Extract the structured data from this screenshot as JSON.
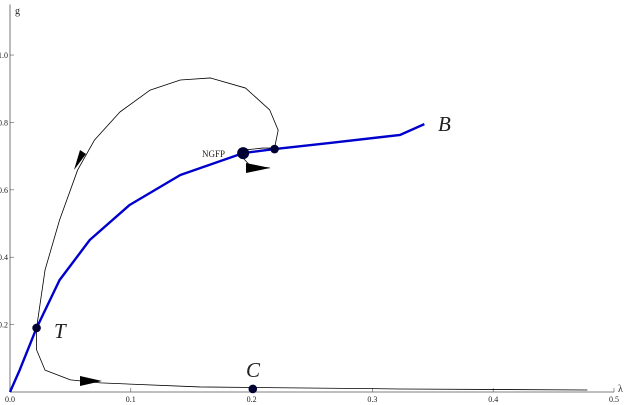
{
  "chart_data": {
    "type": "line",
    "x_label": "λ",
    "y_label": "g",
    "xlim": [
      0,
      0.5
    ],
    "ylim": [
      0,
      1.15
    ],
    "xticks": [
      {
        "value": 0,
        "label": "0.0"
      },
      0.1,
      0.2,
      0.3,
      0.4,
      0.5
    ],
    "yticks": [
      0.2,
      0.4,
      0.6,
      0.8,
      {
        "value": 1,
        "label": "1.0"
      }
    ],
    "annotations": [
      "NGFP",
      "B",
      "T",
      "C"
    ],
    "series": [
      {
        "color": "#0000cc",
        "x": [
          0,
          0.008,
          0.022,
          0.041,
          0.066,
          0.099,
          0.141,
          0.193,
          0.219,
          0.265,
          0.323,
          0.343
        ],
        "values": [
          0,
          0.065,
          0.19,
          0.332,
          0.451,
          0.555,
          0.644,
          0.709,
          0.721,
          0.739,
          0.763,
          0.795
        ]
      },
      {
        "color": "#000000",
        "x": [
          0.215,
          0.199,
          0.193,
          0.194,
          0.209,
          0.219,
          0.222,
          0.215,
          0.195,
          0.166,
          0.141,
          0.116,
          0.091,
          0.07,
          0.056,
          0.041,
          0.029,
          0.022,
          0.022,
          0.029,
          0.05,
          0.075,
          0.157,
          0.323,
          0.478
        ],
        "values": [
          0.665,
          0.671,
          0.694,
          0.718,
          0.724,
          0.724,
          0.777,
          0.837,
          0.902,
          0.932,
          0.926,
          0.896,
          0.831,
          0.748,
          0.659,
          0.51,
          0.362,
          0.19,
          0.125,
          0.065,
          0.036,
          0.027,
          0.015,
          0.009,
          0.006
        ]
      }
    ],
    "points": {
      "color": "#000033",
      "x": [
        0.022,
        0.193,
        0.219,
        0.201
      ],
      "values": [
        0.19,
        0.709,
        0.721,
        0.009
      ]
    }
  }
}
